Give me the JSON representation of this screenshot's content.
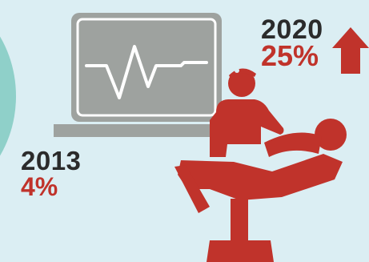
{
  "stats": {
    "left": {
      "year": "2013",
      "percent": "4%"
    },
    "right": {
      "year": "2020",
      "percent": "25%"
    }
  },
  "icons": {
    "monitor": "heart-monitor-icon",
    "dentist": "dentist-icon",
    "patient": "patient-in-chair-icon",
    "arrow": "arrow-up-icon",
    "circle": "decorative-circle"
  },
  "colors": {
    "background": "#dbeef3",
    "teal": "#8fd0c9",
    "monitor_gray": "#9ea29f",
    "red": "#c0332b",
    "dark": "#2b2b2b"
  }
}
